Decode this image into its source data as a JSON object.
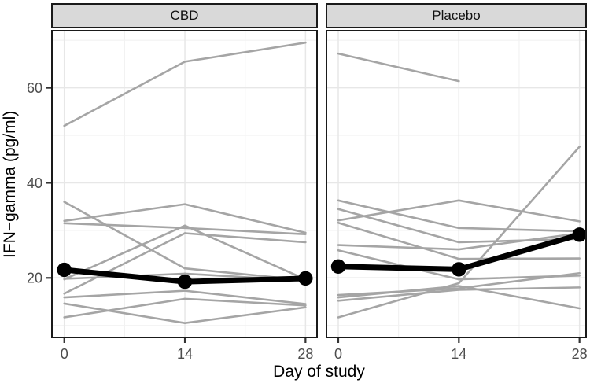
{
  "chart_data": {
    "type": "line",
    "title": "",
    "xlabel": "Day of study",
    "ylabel": "IFN−gamma (pg/ml)",
    "x": [
      0,
      14,
      28
    ],
    "x_ticks": [
      0,
      14,
      28
    ],
    "y_ticks": [
      20,
      40,
      60
    ],
    "xlim": [
      -1.5,
      29.5
    ],
    "ylim": [
      7.3,
      72.2
    ],
    "grid": {
      "major_x": [
        0,
        14,
        28
      ],
      "minor_x": [
        7,
        21
      ],
      "major_y": [
        20,
        40,
        60
      ],
      "minor_y": [
        10,
        30,
        50,
        70
      ]
    },
    "legend": "none",
    "facets": [
      {
        "label": "CBD",
        "subjects": [
          [
            52.0,
            65.5,
            69.5
          ],
          [
            36.0,
            22.0,
            19.5
          ],
          [
            32.0,
            35.5,
            29.5
          ],
          [
            31.5,
            30.5,
            29.2
          ],
          [
            19.7,
            31.0,
            19.7
          ],
          [
            16.7,
            29.4,
            27.5
          ],
          [
            15.9,
            17.3,
            14.5
          ],
          [
            14.6,
            10.5,
            13.8
          ],
          [
            11.7,
            15.6,
            14.2
          ],
          [
            19.8,
            20.9,
            19.4
          ]
        ],
        "mean": [
          21.7,
          19.2,
          19.9
        ]
      },
      {
        "label": "Placebo",
        "subjects": [
          [
            67.2,
            61.4,
            null
          ],
          [
            36.3,
            30.5,
            29.8
          ],
          [
            34.5,
            27.5,
            28.2
          ],
          [
            32.1,
            36.3,
            31.9
          ],
          [
            31.6,
            24.0,
            24.1
          ],
          [
            26.9,
            26.0,
            29.4
          ],
          [
            25.8,
            19.7,
            20.5
          ],
          [
            16.4,
            17.8,
            21.0
          ],
          [
            15.9,
            18.3,
            13.6
          ],
          [
            15.2,
            17.5,
            18.0
          ],
          [
            11.7,
            18.9,
            47.6
          ]
        ],
        "mean": [
          22.4,
          21.8,
          29.1
        ]
      }
    ],
    "colors": {
      "subject_line": "#A5A5A5",
      "mean_line": "#000000",
      "strip_bg": "#D9D9D9",
      "panel_border": "#1A1A1A",
      "grid_major": "#E7E7E7",
      "grid_minor": "#F2F2F2",
      "tick_label": "#4D4D4D",
      "tick_mark": "#333333"
    }
  }
}
